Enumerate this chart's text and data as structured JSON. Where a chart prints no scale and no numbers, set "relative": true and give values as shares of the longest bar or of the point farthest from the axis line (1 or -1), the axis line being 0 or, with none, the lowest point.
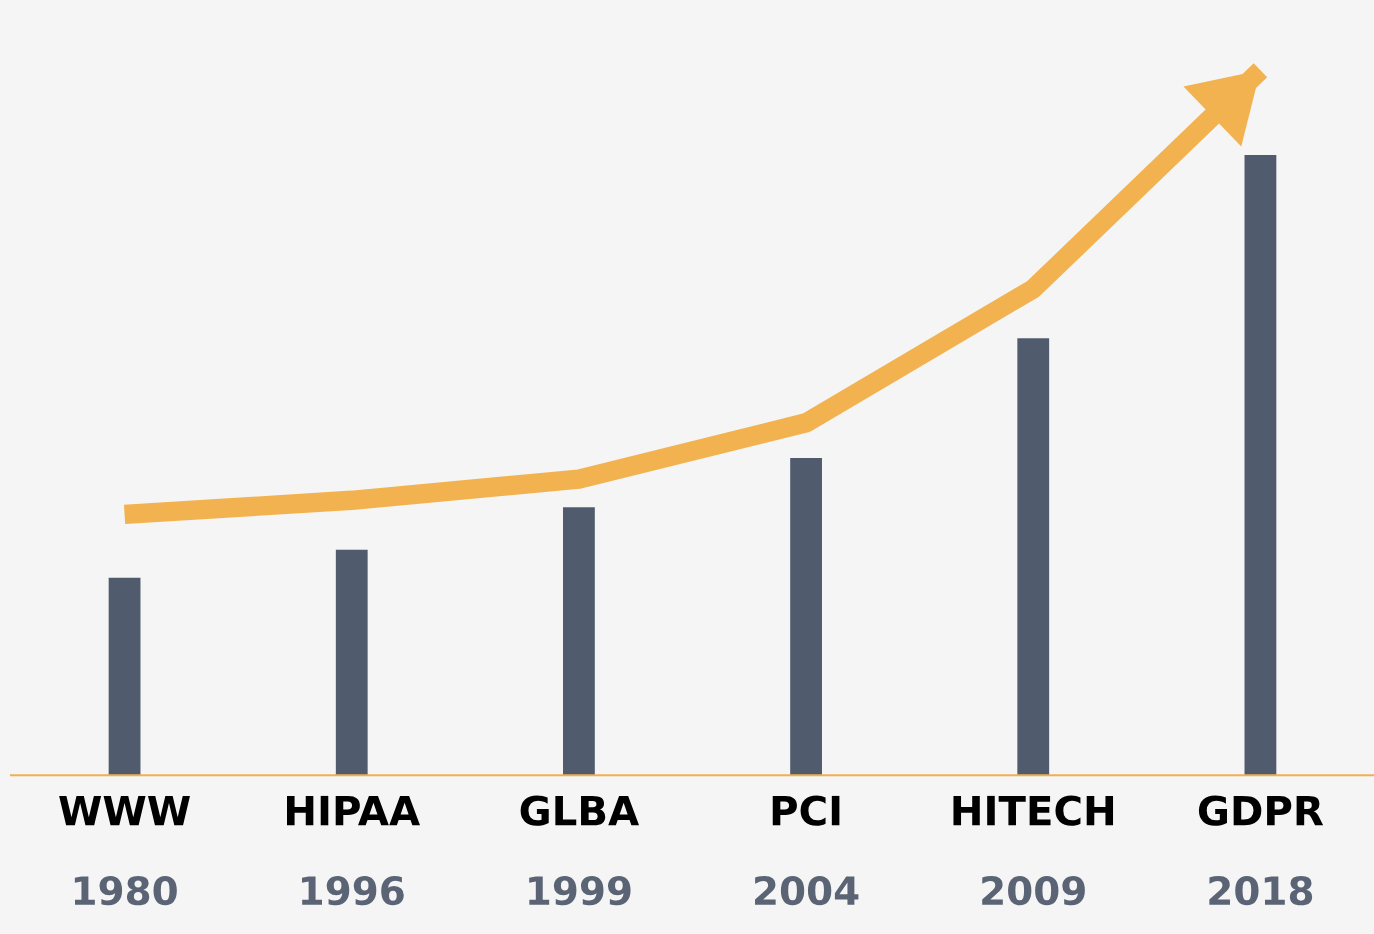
{
  "chart_data": {
    "type": "bar",
    "relative": true,
    "categories": [
      "WWW",
      "HIPAA",
      "GLBA",
      "PCI",
      "HITECH",
      "GDPR"
    ],
    "annotations": [
      "1980",
      "1996",
      "1999",
      "2004",
      "2009",
      "2018"
    ],
    "series": [
      {
        "color": "#505c6e",
        "values": [
          0.28,
          0.32,
          0.38,
          0.45,
          0.62,
          0.88
        ]
      },
      {
        "type": "line",
        "color": "#f2b24f",
        "values": [
          0.37,
          0.39,
          0.42,
          0.5,
          0.69,
          1.0
        ]
      }
    ]
  }
}
